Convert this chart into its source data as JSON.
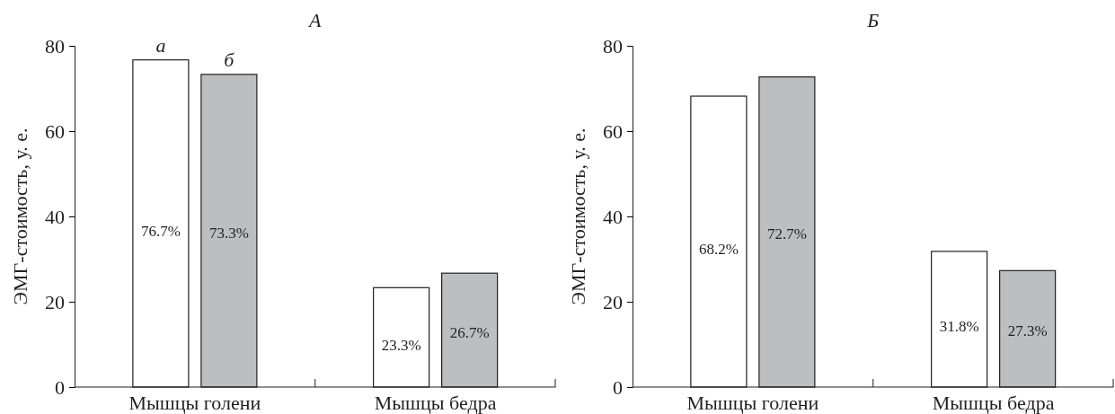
{
  "chart_data": [
    {
      "type": "bar",
      "title": "А",
      "ylabel": "ЭМГ-стоимость, у. е.",
      "categories": [
        "Мышцы голени",
        "Мышцы бедра"
      ],
      "ylim": [
        0,
        80
      ],
      "yticks": [
        0,
        20,
        40,
        60,
        80
      ],
      "series": [
        {
          "color": "#ffffff",
          "values": [
            76.7,
            23.3
          ],
          "value_labels": [
            "76.7%",
            "23.3%"
          ]
        },
        {
          "color": "#bcbec0",
          "values": [
            73.3,
            26.7
          ],
          "value_labels": [
            "73.3%",
            "26.7%"
          ]
        }
      ],
      "annotations": [
        "а",
        "б"
      ]
    },
    {
      "type": "bar",
      "title": "Б",
      "ylabel": "ЭМГ-стоимость, у. е.",
      "categories": [
        "Мышцы голени",
        "Мышцы бедра"
      ],
      "ylim": [
        0,
        80
      ],
      "yticks": [
        0,
        20,
        40,
        60,
        80
      ],
      "series": [
        {
          "color": "#ffffff",
          "values": [
            68.2,
            31.8
          ],
          "value_labels": [
            "68.2%",
            "31.8%"
          ]
        },
        {
          "color": "#bcbec0",
          "values": [
            72.7,
            27.3
          ],
          "value_labels": [
            "72.7%",
            "27.3%"
          ]
        }
      ]
    }
  ]
}
